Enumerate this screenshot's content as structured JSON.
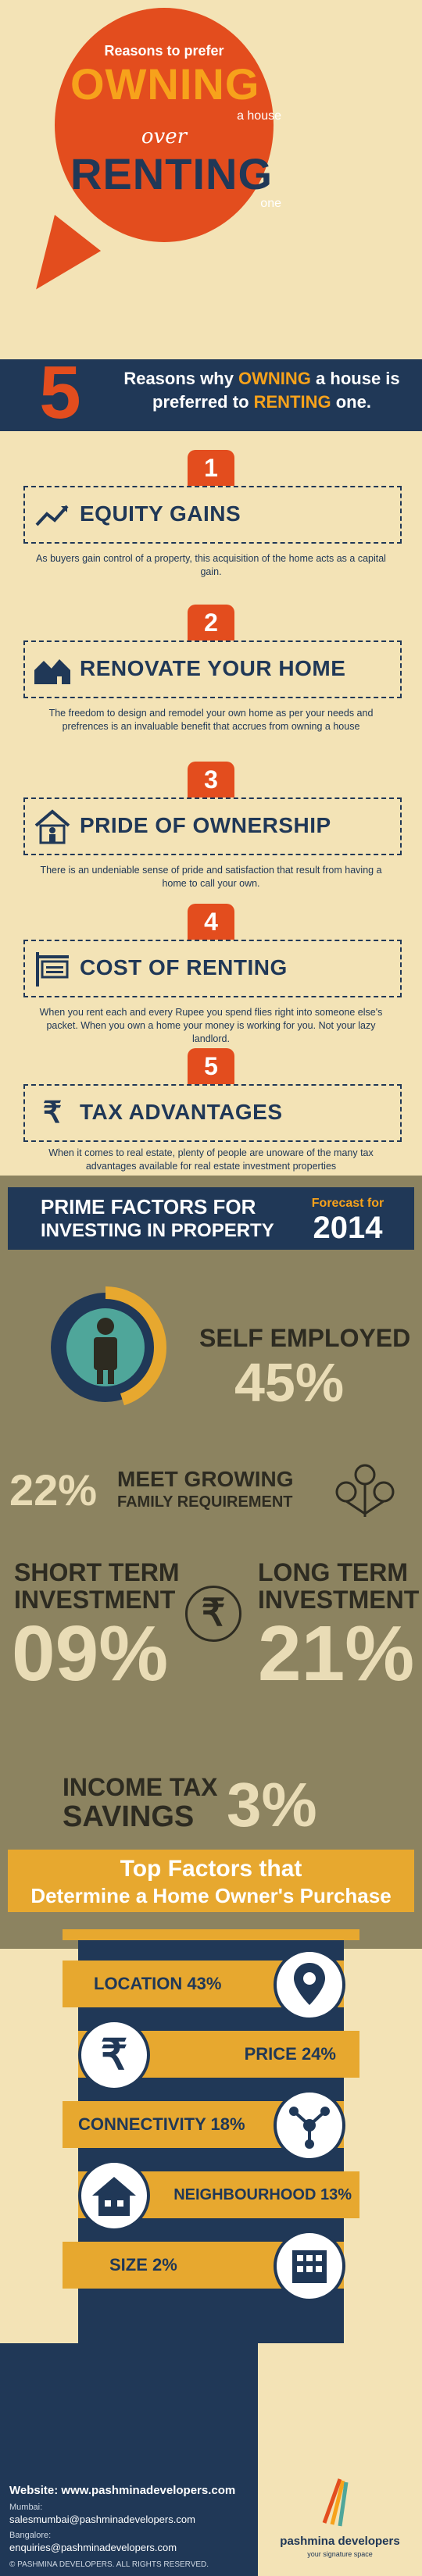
{
  "hero": {
    "small": "Reasons to prefer",
    "owning": "OWNING",
    "a_house": "a house",
    "over": "over",
    "renting": "RENTING",
    "one": "one"
  },
  "ribbon": {
    "number": "5",
    "line1_a": "Reasons why ",
    "line1_hl": "OWNING",
    "line1_b": " a house is",
    "line2_a": "preferred to ",
    "line2_hl": "RENTING",
    "line2_b": " one."
  },
  "reasons": [
    {
      "num": "1",
      "title": "EQUITY GAINS",
      "desc": "As buyers gain control of a property, this acquisition of the home acts as a capital gain."
    },
    {
      "num": "2",
      "title": "RENOVATE YOUR HOME",
      "desc": "The freedom to design and remodel your own home as per your needs and prefrences is an invaluable benefit that accrues from owning a house"
    },
    {
      "num": "3",
      "title": "PRIDE OF OWNERSHIP",
      "desc": "There is an undeniable sense of pride and satisfaction that result from having a home to call your own."
    },
    {
      "num": "4",
      "title": "COST OF RENTING",
      "desc": "When you rent each and every Rupee you spend flies right into someone else's packet. When you own a home your money is working for you. Not your lazy landlord."
    },
    {
      "num": "5",
      "title": "TAX ADVANTAGES",
      "desc": "When it comes to real estate, plenty of people are unoware of the many tax advantages available for real estate investment properties"
    }
  ],
  "prime": {
    "line1": "PRIME FACTORS FOR",
    "line2": "INVESTING IN PROPERTY",
    "forecast": "Forecast for",
    "year": "2014",
    "self_employed_label": "SELF EMPLOYED",
    "self_employed_value": "45%",
    "family_value": "22%",
    "family_label_1": "MEET GROWING",
    "family_label_2": "FAMILY REQUIREMENT",
    "short_label_1": "SHORT TERM",
    "short_label_2": "INVESTMENT",
    "short_value": "09%",
    "long_label_1": "LONG TERM",
    "long_label_2": "INVESTMENT",
    "long_value": "21%",
    "income_label_1": "INCOME TAX",
    "income_label_2": "SAVINGS",
    "income_value": "3%",
    "rupee": "₹"
  },
  "top_factors": {
    "line1": "Top Factors that",
    "line2": "Determine a Home Owner's Purchase",
    "items": [
      {
        "label": "LOCATION 43%"
      },
      {
        "label": "PRICE 24%"
      },
      {
        "label": "CONNECTIVITY 18%"
      },
      {
        "label": "NEIGHBOURHOOD 13%"
      },
      {
        "label": "SIZE 2%"
      }
    ]
  },
  "footer": {
    "website": "Website: www.pashminadevelopers.com",
    "mumbai_label": "Mumbai:",
    "mumbai_email": "salesmumbai@pashminadevelopers.com",
    "bangalore_label": "Bangalore:",
    "bangalore_email": "enquiries@pashminadevelopers.com",
    "copyright": "© PASHMINA DEVELOPERS. ALL RIGHTS RESERVED.",
    "brand": "pashmina developers",
    "tagline": "your signature space"
  },
  "colors": {
    "orange": "#e34d1e",
    "navy": "#203857",
    "gold": "#e7a82f",
    "cream": "#f3e3b6",
    "olive": "#8c8360"
  }
}
